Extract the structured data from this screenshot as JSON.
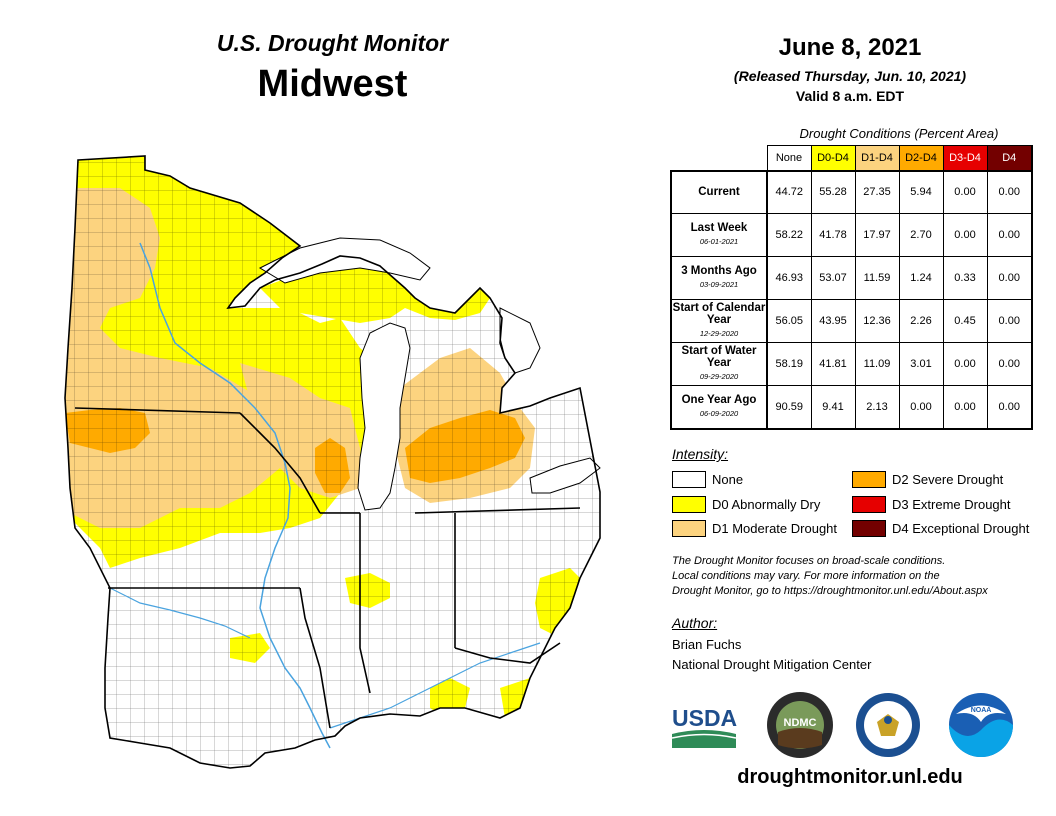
{
  "header": {
    "subtitle": "U.S. Drought Monitor",
    "region": "Midwest"
  },
  "date": {
    "main": "June 8, 2021",
    "released": "(Released Thursday, Jun. 10, 2021)",
    "valid": "Valid 8 a.m. EDT"
  },
  "table": {
    "caption": "Drought Conditions (Percent Area)",
    "columns": [
      "None",
      "D0-D4",
      "D1-D4",
      "D2-D4",
      "D3-D4",
      "D4"
    ],
    "column_colors": [
      "#ffffff",
      "#ffff00",
      "#fcd37f",
      "#ffaa00",
      "#e60000",
      "#730000"
    ],
    "rows": [
      {
        "label": "Current",
        "date": "",
        "values": [
          "44.72",
          "55.28",
          "27.35",
          "5.94",
          "0.00",
          "0.00"
        ]
      },
      {
        "label": "Last Week",
        "date": "06-01-2021",
        "values": [
          "58.22",
          "41.78",
          "17.97",
          "2.70",
          "0.00",
          "0.00"
        ]
      },
      {
        "label": "3 Months Ago",
        "date": "03-09-2021",
        "values": [
          "46.93",
          "53.07",
          "11.59",
          "1.24",
          "0.33",
          "0.00"
        ]
      },
      {
        "label": "Start of Calendar Year",
        "date": "12-29-2020",
        "values": [
          "56.05",
          "43.95",
          "12.36",
          "2.26",
          "0.45",
          "0.00"
        ]
      },
      {
        "label": "Start of Water Year",
        "date": "09-29-2020",
        "values": [
          "58.19",
          "41.81",
          "11.09",
          "3.01",
          "0.00",
          "0.00"
        ]
      },
      {
        "label": "One Year Ago",
        "date": "06-09-2020",
        "values": [
          "90.59",
          "9.41",
          "2.13",
          "0.00",
          "0.00",
          "0.00"
        ]
      }
    ]
  },
  "legend": {
    "title": "Intensity:",
    "items": [
      {
        "label": "None",
        "color": "#ffffff"
      },
      {
        "label": "D0 Abnormally Dry",
        "color": "#ffff00"
      },
      {
        "label": "D1 Moderate Drought",
        "color": "#fcd37f"
      },
      {
        "label": "D2 Severe Drought",
        "color": "#ffaa00"
      },
      {
        "label": "D3 Extreme Drought",
        "color": "#e60000"
      },
      {
        "label": "D4 Exceptional Drought",
        "color": "#730000"
      }
    ]
  },
  "note": {
    "line1": "The Drought Monitor focuses on broad-scale conditions.",
    "line2": "Local conditions may vary. For more information on the",
    "line3": "Drought Monitor, go to https://droughtmonitor.unl.edu/About.aspx"
  },
  "author": {
    "title": "Author:",
    "name": "Brian Fuchs",
    "org": "National Drought Mitigation Center"
  },
  "logos": {
    "usda": "USDA",
    "ndmc": "NDMC",
    "noaa": "NOAA"
  },
  "website": "droughtmonitor.unl.edu",
  "colors": {
    "none": "#ffffff",
    "d0": "#ffff00",
    "d1": "#fcd37f",
    "d2": "#ffaa00",
    "water": "#8ecbe8",
    "border": "#000000"
  }
}
